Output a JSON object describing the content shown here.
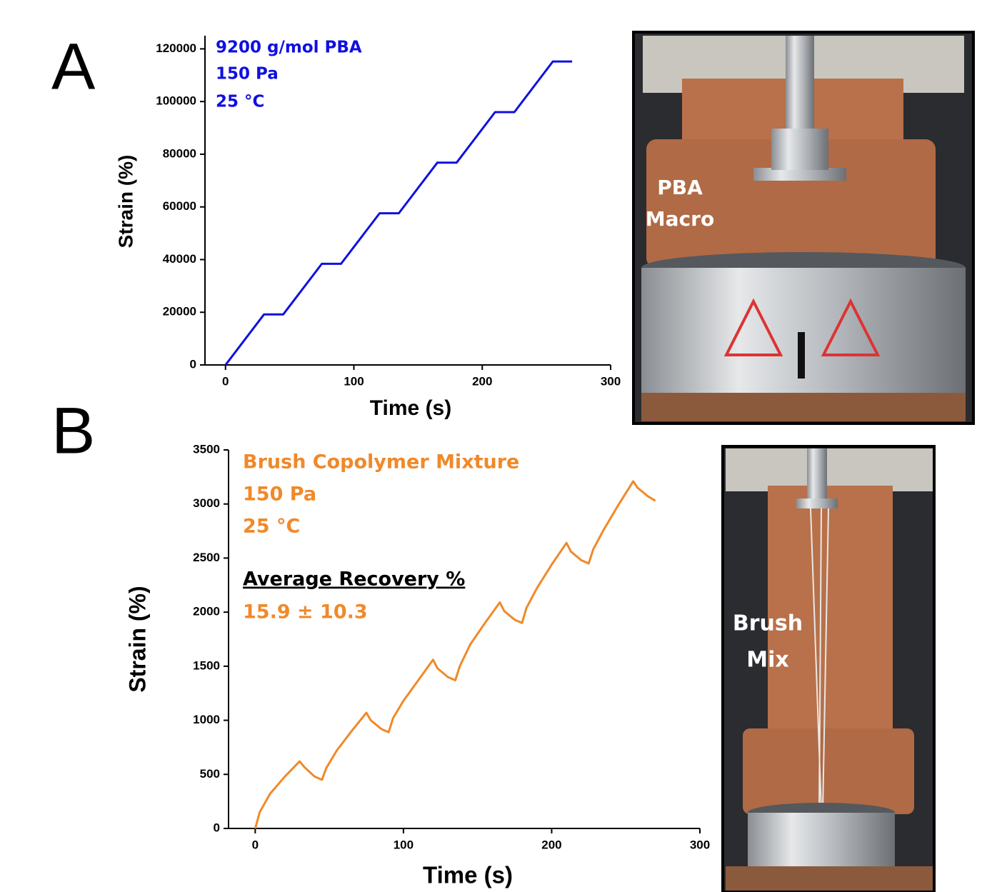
{
  "panels": [
    "A",
    "B"
  ],
  "photos": [
    {
      "labels": [
        "PBA",
        "Macro"
      ]
    },
    {
      "labels": [
        "Brush",
        "Mix"
      ]
    }
  ],
  "chart_data": [
    {
      "type": "line",
      "xlabel": "Time (s)",
      "ylabel": "Strain (%)",
      "annotations": [
        "9200 g/mol PBA",
        "150 Pa",
        "25 °C"
      ],
      "color": "#1010e0",
      "x": [
        0,
        30,
        45,
        75,
        90,
        120,
        135,
        165,
        180,
        210,
        225,
        255,
        270
      ],
      "values": [
        0,
        19200,
        19200,
        38400,
        38400,
        57600,
        57600,
        76800,
        76800,
        96000,
        96000,
        115200,
        115200
      ],
      "xlim": [
        -16,
        300
      ],
      "xticks": [
        0,
        100,
        200,
        300
      ],
      "ylim": [
        0,
        125000
      ],
      "yticks": [
        0,
        20000,
        40000,
        60000,
        80000,
        100000,
        120000
      ]
    },
    {
      "type": "line",
      "xlabel": "Time (s)",
      "ylabel": "Strain (%)",
      "annotations": [
        "Brush Copolymer Mixture",
        "150 Pa",
        "25 °C",
        "Average Recovery %",
        "15.9 ± 10.3"
      ],
      "color": "#f0892a",
      "x": [
        0,
        3,
        10,
        20,
        30,
        33,
        40,
        45,
        48,
        55,
        65,
        75,
        78,
        85,
        90,
        93,
        100,
        110,
        120,
        123,
        130,
        135,
        138,
        145,
        155,
        165,
        168,
        175,
        180,
        183,
        190,
        200,
        210,
        213,
        220,
        225,
        228,
        235,
        245,
        255,
        258,
        265,
        270
      ],
      "values": [
        0,
        150,
        320,
        480,
        620,
        570,
        480,
        450,
        560,
        720,
        900,
        1070,
        1000,
        920,
        890,
        1020,
        1180,
        1370,
        1560,
        1480,
        1400,
        1370,
        1500,
        1700,
        1900,
        2090,
        2010,
        1930,
        1900,
        2040,
        2220,
        2440,
        2640,
        2560,
        2480,
        2450,
        2580,
        2760,
        2990,
        3210,
        3150,
        3070,
        3030
      ],
      "xlim": [
        -18,
        300
      ],
      "xticks": [
        0,
        100,
        200,
        300
      ],
      "ylim": [
        0,
        3500
      ],
      "yticks": [
        0,
        500,
        1000,
        1500,
        2000,
        2500,
        3000,
        3500
      ]
    }
  ]
}
